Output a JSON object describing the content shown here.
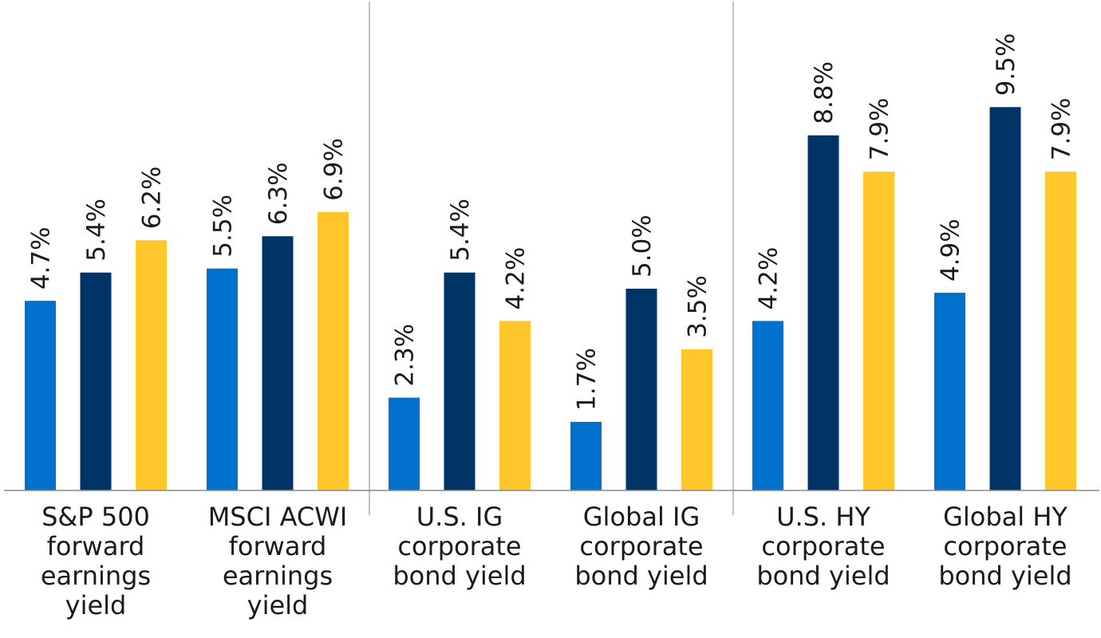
{
  "chart_data": {
    "type": "bar",
    "title": "",
    "xlabel": "",
    "ylabel": "",
    "ylim": [
      0,
      10
    ],
    "grid": false,
    "legend": "none",
    "series_colors": [
      "#0072CE",
      "#003366",
      "#FFC72C"
    ],
    "categories": [
      {
        "label_lines": [
          "S&P 500",
          "forward",
          "earnings",
          "yield"
        ],
        "values": [
          4.7,
          5.4,
          6.2
        ],
        "value_labels": [
          "4.7%",
          "5.4%",
          "6.2%"
        ]
      },
      {
        "label_lines": [
          "MSCI ACWI",
          "forward",
          "earnings",
          "yield"
        ],
        "values": [
          5.5,
          6.3,
          6.9
        ],
        "value_labels": [
          "5.5%",
          "6.3%",
          "6.9%"
        ]
      },
      {
        "label_lines": [
          "U.S. IG",
          "corporate",
          "bond yield"
        ],
        "values": [
          2.3,
          5.4,
          4.2
        ],
        "value_labels": [
          "2.3%",
          "5.4%",
          "4.2%"
        ]
      },
      {
        "label_lines": [
          "Global IG",
          "corporate",
          "bond yield"
        ],
        "values": [
          1.7,
          5.0,
          3.5
        ],
        "value_labels": [
          "1.7%",
          "5.0%",
          "3.5%"
        ]
      },
      {
        "label_lines": [
          "U.S. HY",
          "corporate",
          "bond yield"
        ],
        "values": [
          4.2,
          8.8,
          7.9
        ],
        "value_labels": [
          "4.2%",
          "8.8%",
          "7.9%"
        ]
      },
      {
        "label_lines": [
          "Global HY",
          "corporate",
          "bond yield"
        ],
        "values": [
          4.9,
          9.5,
          7.9
        ],
        "value_labels": [
          "4.9%",
          "9.5%",
          "7.9%"
        ]
      }
    ]
  }
}
